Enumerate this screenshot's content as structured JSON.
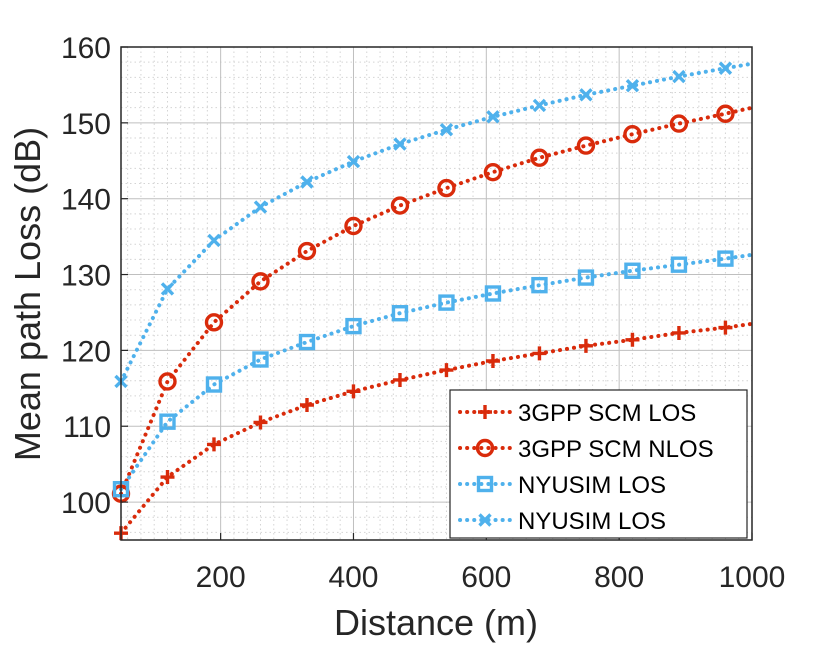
{
  "chart_data": {
    "type": "line",
    "title": "",
    "xlabel": "Distance (m)",
    "ylabel": "Mean path Loss (dB)",
    "xlim": [
      50,
      1000
    ],
    "ylim": [
      95,
      160
    ],
    "xticks": [
      200,
      400,
      600,
      800,
      1000
    ],
    "yticks": [
      100,
      110,
      120,
      130,
      140,
      150,
      160
    ],
    "xtick_labels": [
      "200",
      "400",
      "600",
      "800",
      "1000"
    ],
    "ytick_labels": [
      "100",
      "110",
      "120",
      "130",
      "140",
      "150",
      "160"
    ],
    "grid": true,
    "minor_grid": true,
    "legend_position": "bottom-right",
    "marker_x": [
      50,
      120,
      190,
      260,
      330,
      400,
      470,
      540,
      610,
      680,
      750,
      820,
      890,
      960
    ],
    "series": [
      {
        "name": "3GPP SCM LOS",
        "color": "#d92b0b",
        "marker": "plus",
        "values": [
          95.9,
          103.3,
          107.6,
          110.5,
          112.8,
          114.6,
          116.1,
          117.4,
          118.6,
          119.6,
          120.6,
          121.4,
          122.3,
          123.0
        ],
        "end_value": 123.5
      },
      {
        "name": "3GPP SCM NLOS",
        "color": "#d92b0b",
        "marker": "circle",
        "values": [
          101.1,
          115.9,
          123.7,
          129.1,
          133.1,
          136.4,
          139.1,
          141.4,
          143.5,
          145.4,
          147.0,
          148.5,
          149.9,
          151.2
        ],
        "end_value": 152.0
      },
      {
        "name": "NYUSIM LOS",
        "color": "#4fb1ec",
        "marker": "square",
        "values": [
          101.7,
          110.6,
          115.5,
          118.8,
          121.1,
          123.2,
          124.9,
          126.3,
          127.5,
          128.6,
          129.6,
          130.5,
          131.3,
          132.1
        ],
        "end_value": 132.6
      },
      {
        "name": "NYUSIM LOS",
        "color": "#4fb1ec",
        "marker": "x",
        "values": [
          115.9,
          128.1,
          134.5,
          138.9,
          142.2,
          144.9,
          147.2,
          149.1,
          150.8,
          152.3,
          153.7,
          154.9,
          156.1,
          157.2
        ],
        "end_value": 157.8
      }
    ]
  }
}
